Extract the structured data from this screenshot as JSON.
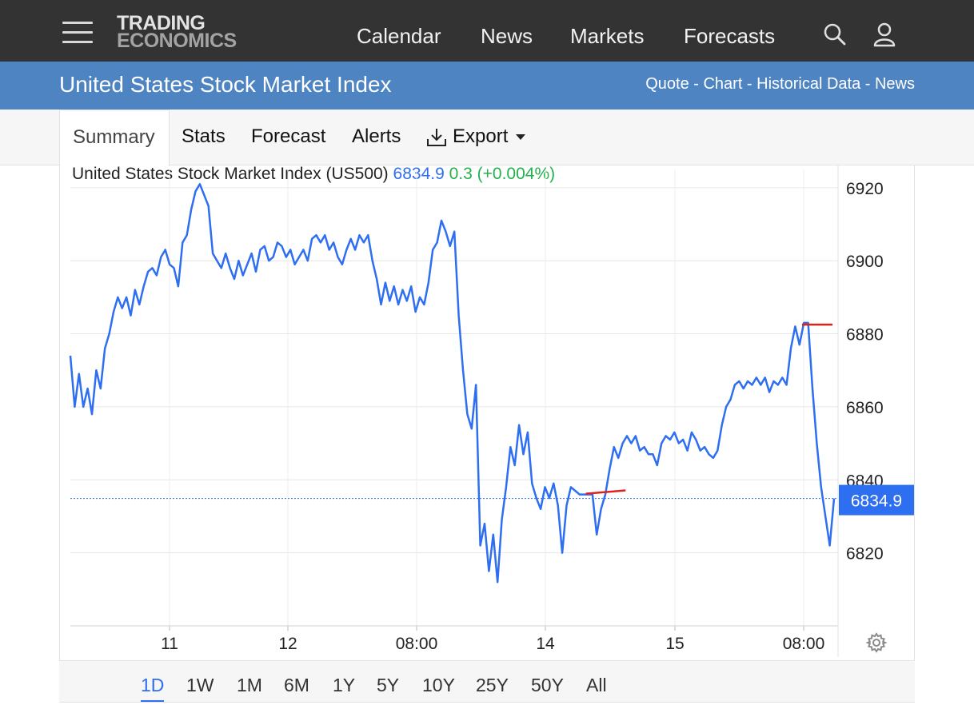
{
  "header": {
    "logo_line1": "TRADING",
    "logo_line2": "ECONOMICS",
    "nav": [
      "Calendar",
      "News",
      "Markets",
      "Forecasts"
    ],
    "icons": [
      "menu-icon",
      "search-icon",
      "user-icon"
    ]
  },
  "titlebar": {
    "title": "United States Stock Market Index",
    "links": [
      "Quote",
      "Chart",
      "Historical Data",
      "News"
    ],
    "separator": " - "
  },
  "tabs": {
    "active": "Summary",
    "items": [
      "Stats",
      "Forecast",
      "Alerts"
    ],
    "export": "Export"
  },
  "chart_header": {
    "name": "United States Stock Market Index (US500)",
    "price": "6834.9",
    "change": "0.3 (+0.004%)"
  },
  "ranges": {
    "items": [
      "1D",
      "1W",
      "1M",
      "6M",
      "1Y",
      "5Y",
      "10Y",
      "25Y",
      "50Y",
      "All"
    ],
    "active": "1D"
  },
  "colors": {
    "topbar": "#333333",
    "titlebar": "#4e84c2",
    "series": "#2e6ef0",
    "positive": "#22b14c",
    "highlight": "#e0201a"
  },
  "chart_data": {
    "type": "line",
    "title": "United States Stock Market Index (US500)",
    "ylim": [
      6800,
      6925
    ],
    "yticks": [
      6920,
      6900,
      6880,
      6860,
      6840,
      6820
    ],
    "xticks": [
      "11",
      "12",
      "08:00",
      "14",
      "15",
      "08:00"
    ],
    "last_value": 6834.9,
    "last_label": "6834.9",
    "grid": true,
    "series": [
      {
        "y": [
          6874,
          6860,
          6869,
          6860,
          6865,
          6858,
          6870,
          6865,
          6876,
          6880,
          6886,
          6890,
          6887,
          6890,
          6885,
          6892,
          6888,
          6893,
          6897,
          6898,
          6896,
          6901,
          6903,
          6899,
          6898,
          6893,
          6905,
          6907,
          6914,
          6919,
          6921,
          6918,
          6915,
          6902,
          6900,
          6898,
          6902,
          6898,
          6895,
          6900,
          6896,
          6899,
          6902,
          6897,
          6903,
          6904,
          6900,
          6901,
          6905,
          6904,
          6901,
          6903,
          6899,
          6901,
          6903,
          6900,
          6906,
          6907,
          6905,
          6907,
          6903,
          6905,
          6901,
          6899,
          6903,
          6906,
          6903,
          6907,
          6905,
          6907,
          6900,
          6895,
          6888,
          6894,
          6889,
          6893,
          6888,
          6892,
          6889,
          6893,
          6886,
          6890,
          6888,
          6894,
          6903,
          6905,
          6911,
          6908,
          6904,
          6908,
          6885,
          6870,
          6858,
          6854,
          6866,
          6822,
          6828,
          6815,
          6825,
          6812,
          6829,
          6838,
          6849,
          6844,
          6855,
          6847,
          6853,
          6839,
          6835,
          6832,
          6838,
          6835,
          6839,
          6833,
          6820,
          6833,
          6838,
          6837,
          6836,
          6836,
          6836,
          6836,
          6825,
          6832,
          6836,
          6843,
          6849,
          6846,
          6850,
          6852,
          6850,
          6852,
          6848,
          6849,
          6847,
          6847,
          6844,
          6850,
          6852,
          6851,
          6853,
          6850,
          6851,
          6848,
          6853,
          6851,
          6848,
          6849,
          6847,
          6846,
          6848,
          6855,
          6860,
          6862,
          6866,
          6867,
          6865,
          6867,
          6866,
          6868,
          6866,
          6868,
          6864,
          6867,
          6866,
          6868,
          6866,
          6876,
          6882,
          6877,
          6883,
          6883,
          6865,
          6850,
          6838,
          6830,
          6822,
          6834.9
        ]
      }
    ],
    "annotations": [
      {
        "type": "segment",
        "x0": 0.675,
        "x1": 0.727,
        "y0": 6836.2,
        "y1": 6837.1
      },
      {
        "type": "segment",
        "x0": 0.958,
        "x1": 0.998,
        "y0": 6882.5,
        "y1": 6882.5
      }
    ]
  }
}
